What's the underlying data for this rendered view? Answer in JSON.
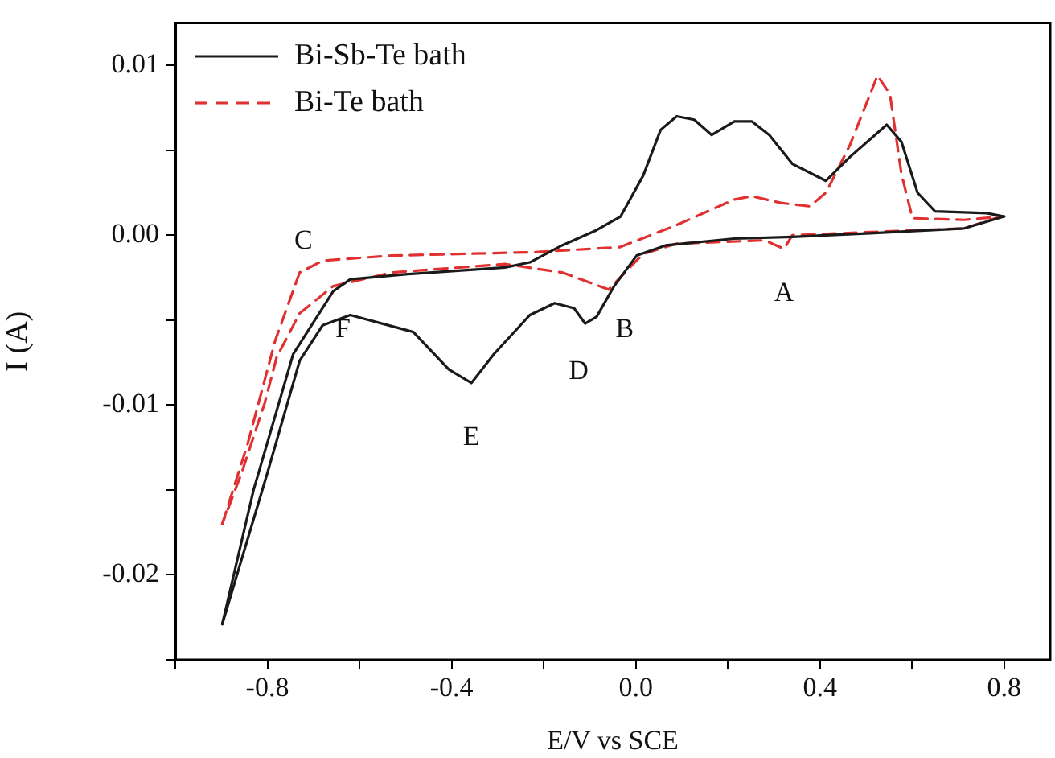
{
  "chart_data": {
    "type": "line",
    "xlabel": "E/V vs SCE",
    "ylabel": "I (A)",
    "xlim": [
      -1.0,
      0.9
    ],
    "xticks": [
      {
        "value": -1.0,
        "label": null
      },
      -0.8,
      {
        "value": -0.6,
        "label": null
      },
      -0.4,
      {
        "value": -0.2,
        "label": null
      },
      {
        "value": 0,
        "label": "0.0"
      },
      {
        "value": 0.2,
        "label": null
      },
      0.4,
      {
        "value": 0.6,
        "label": null
      },
      0.8
    ],
    "ylim": [
      -0.025,
      0.0125
    ],
    "yticks": [
      {
        "value": -0.025,
        "label": null
      },
      -0.02,
      {
        "value": -0.015,
        "label": null
      },
      -0.01,
      {
        "value": -0.005,
        "label": null
      },
      {
        "value": 0,
        "label": "0.00"
      },
      {
        "value": 0.005,
        "label": null
      },
      0.01
    ],
    "grid": false,
    "legend": "top left",
    "marker": "none",
    "series": [
      {
        "name": "Bi-Sb-Te bath",
        "color": "#1a1a1a",
        "line_style": "solid",
        "x": [
          -0.898,
          -0.83,
          -0.744,
          -0.657,
          -0.62,
          -0.5,
          -0.284,
          -0.23,
          -0.16,
          -0.085,
          -0.033,
          0.016,
          0.054,
          0.089,
          0.127,
          0.165,
          0.214,
          0.252,
          0.29,
          0.34,
          0.413,
          0.465,
          0.545,
          0.577,
          0.612,
          0.65,
          0.762,
          0.8
        ],
        "values": [
          -0.0229,
          -0.015,
          -0.007,
          -0.0033,
          -0.0026,
          -0.0023,
          -0.0019,
          -0.0016,
          -0.0006,
          0.0003,
          0.0011,
          0.0035,
          0.0062,
          0.007,
          0.0068,
          0.0059,
          0.0067,
          0.0067,
          0.0059,
          0.0042,
          0.0032,
          0.0046,
          0.0065,
          0.0055,
          0.0025,
          0.0014,
          0.0013,
          0.0011
        ]
      },
      {
        "color": "#1a1a1a",
        "line_style": "solid",
        "x": [
          0.8,
          0.713,
          0.5,
          0.34,
          0.214,
          0.065,
          0.002,
          -0.047,
          -0.085,
          -0.11,
          -0.134,
          -0.176,
          -0.23,
          -0.308,
          -0.357,
          -0.406,
          -0.483,
          -0.62,
          -0.68,
          -0.73,
          -0.8,
          -0.898
        ],
        "values": [
          0.0011,
          0.0004,
          0.0001,
          -0.0001,
          -0.0002,
          -0.0006,
          -0.0012,
          -0.003,
          -0.0048,
          -0.0052,
          -0.0043,
          -0.004,
          -0.0047,
          -0.007,
          -0.0087,
          -0.0079,
          -0.0057,
          -0.0047,
          -0.0053,
          -0.0074,
          -0.014,
          -0.0229
        ]
      },
      {
        "name": "Bi-Te bath",
        "color": "#e03030",
        "line_style": "dashed",
        "x": [
          -0.898,
          -0.843,
          -0.783,
          -0.73,
          -0.68,
          -0.53,
          -0.22,
          -0.034,
          0.089,
          0.214,
          0.252,
          0.315,
          0.378,
          0.413,
          0.465,
          0.525,
          0.552,
          0.577,
          0.601,
          0.713,
          0.793
        ],
        "values": [
          -0.017,
          -0.0123,
          -0.0062,
          -0.0022,
          -0.0015,
          -0.0012,
          -0.001,
          -0.0007,
          0.0006,
          0.0021,
          0.0023,
          0.0019,
          0.0017,
          0.0025,
          0.0053,
          0.0094,
          0.0083,
          0.0036,
          0.001,
          0.0009,
          0.0011
        ]
      },
      {
        "color": "#e03030",
        "line_style": "dashed",
        "x": [
          0.793,
          0.713,
          0.34,
          0.322,
          0.28,
          0.089,
          0.016,
          -0.059,
          -0.159,
          -0.284,
          -0.53,
          -0.657,
          -0.73,
          -0.78,
          -0.806,
          -0.856,
          -0.898
        ],
        "values": [
          0.0011,
          0.0004,
          0.0,
          -0.0008,
          -0.0003,
          -0.0005,
          -0.0011,
          -0.0032,
          -0.0022,
          -0.0017,
          -0.0022,
          -0.003,
          -0.0046,
          -0.0072,
          -0.0099,
          -0.014,
          -0.017
        ]
      }
    ],
    "annotations": [
      {
        "text": "A",
        "x": 0.322,
        "y": -0.0008
      },
      {
        "text": "B",
        "x": -0.059,
        "y": -0.0032
      },
      {
        "text": "C",
        "x": -0.68,
        "y": -0.0015
      },
      {
        "text": "D",
        "x": -0.11,
        "y": -0.0052
      },
      {
        "text": "E",
        "x": -0.357,
        "y": -0.0087
      },
      {
        "text": "F",
        "x": -0.657,
        "y": -0.0033
      }
    ]
  }
}
